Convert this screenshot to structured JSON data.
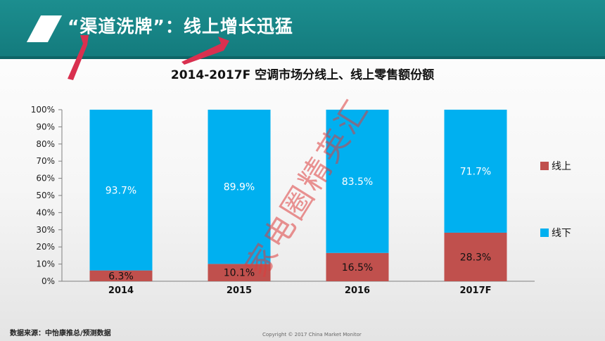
{
  "slide": {
    "title": "“渠道洗牌”：线上增长迅猛",
    "source": "数据来源：中怡康推总/预测数据",
    "copyright": "Copyright © 2017 China Market Monitor",
    "watermark": "家电圈精英汇"
  },
  "colors": {
    "header": "#1c8e8f",
    "online": "#c0504d",
    "offline": "#00b0f0"
  },
  "chart_data": {
    "type": "bar",
    "stacked": true,
    "title": "2014-2017F 空调市场分线上、线上零售额份额",
    "categories": [
      "2014",
      "2015",
      "2016",
      "2017F"
    ],
    "series": [
      {
        "name": "线上",
        "values": [
          6.3,
          10.1,
          16.5,
          28.3
        ],
        "labels": [
          "6.3%",
          "10.1%",
          "16.5%",
          "28.3%"
        ],
        "color": "#c0504d"
      },
      {
        "name": "线下",
        "values": [
          93.7,
          89.9,
          83.5,
          71.7
        ],
        "labels": [
          "93.7%",
          "89.9%",
          "83.5%",
          "71.7%"
        ],
        "color": "#00b0f0"
      }
    ],
    "ylim": [
      0,
      100
    ],
    "yticks": [
      "0%",
      "10%",
      "20%",
      "30%",
      "40%",
      "50%",
      "60%",
      "70%",
      "80%",
      "90%",
      "100%"
    ],
    "legend_position": "right",
    "grid": false
  }
}
